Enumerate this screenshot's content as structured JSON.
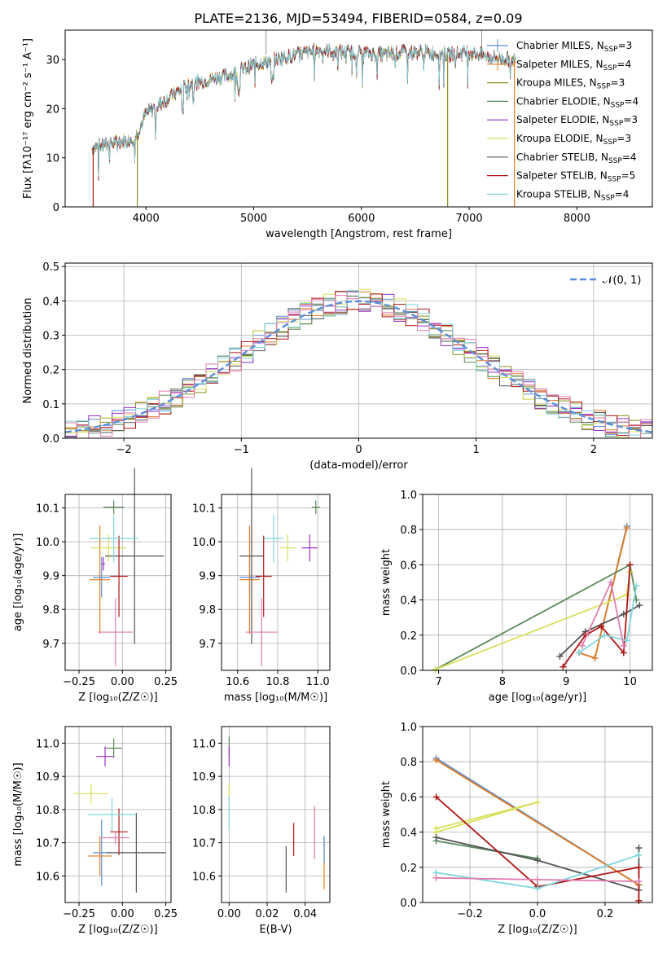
{
  "figure": {
    "title": "PLATE=2136, MJD=53494, FIBERID=0584, z=0.09"
  },
  "colors": {
    "Chabrier MILES": "#5b8fd9",
    "Salpeter MILES": "#e07b20",
    "Kroupa MILES": "#8c8c1e",
    "Chabrier ELODIE": "#5a8a5a",
    "Salpeter ELODIE": "#9b30c8",
    "Kroupa ELODIE": "#d8e05a",
    "Chabrier STELIB": "#555555",
    "Salpeter STELIB": "#b01515",
    "Kroupa STELIB": "#7fd6dc",
    "pink": "#e07bb0",
    "gauss": "#5b8fd9"
  },
  "chart_data": [
    {
      "type": "line",
      "id": "spectrum",
      "title": "PLATE=2136, MJD=53494, FIBERID=0584, z=0.09",
      "xlabel": "wavelength [Angstrom, rest frame]",
      "ylabel": "Flux [fλ10⁻¹⁷ erg cm⁻² s⁻¹ A⁻¹]",
      "xlim": [
        3250,
        8700
      ],
      "ylim": [
        0,
        36
      ],
      "xticks": [
        "4000",
        "5000",
        "6000",
        "7000",
        "8000"
      ],
      "yticks": [
        "0",
        "10",
        "20",
        "30"
      ],
      "legend_position": "right",
      "legend": [
        {
          "label": "Chabrier MILES, N",
          "sub": "SSP",
          "suffix": "=3"
        },
        {
          "label": "Salpeter MILES, N",
          "sub": "SSP",
          "suffix": "=4"
        },
        {
          "label": "Kroupa MILES, N",
          "sub": "SSP",
          "suffix": "=3"
        },
        {
          "label": "Chabrier ELODIE, N",
          "sub": "SSP",
          "suffix": "=4"
        },
        {
          "label": "Salpeter ELODIE, N",
          "sub": "SSP",
          "suffix": "=3"
        },
        {
          "label": "Kroupa ELODIE, N",
          "sub": "SSP",
          "suffix": "=3"
        },
        {
          "label": "Chabrier STELIB, N",
          "sub": "SSP",
          "suffix": "=4"
        },
        {
          "label": "Salpeter STELIB, N",
          "sub": "SSP",
          "suffix": "=5"
        },
        {
          "label": "Kroupa STELIB, N",
          "sub": "SSP",
          "suffix": "=4"
        }
      ],
      "continuum": [
        [
          3500,
          12
        ],
        [
          3700,
          13
        ],
        [
          3900,
          14
        ],
        [
          4000,
          19
        ],
        [
          4200,
          22
        ],
        [
          4400,
          25
        ],
        [
          4600,
          26
        ],
        [
          4800,
          27
        ],
        [
          5000,
          29
        ],
        [
          5200,
          30
        ],
        [
          5400,
          31
        ],
        [
          5600,
          32
        ],
        [
          5800,
          31.5
        ],
        [
          6000,
          31.5
        ],
        [
          6200,
          31
        ],
        [
          6400,
          31.5
        ],
        [
          6600,
          31.5
        ],
        [
          6800,
          31
        ],
        [
          7000,
          31.5
        ],
        [
          7200,
          30.5
        ],
        [
          7400,
          30
        ]
      ],
      "drops": [
        [
          3510,
          0
        ],
        [
          3920,
          0
        ],
        [
          6800,
          0
        ],
        [
          7420,
          0
        ]
      ]
    },
    {
      "type": "histogram",
      "id": "residuals",
      "xlabel": "(data-model)/error",
      "ylabel": "Normed distribution",
      "xlim": [
        -2.5,
        2.5
      ],
      "ylim": [
        0,
        0.51
      ],
      "xticks": [
        "−2",
        "−1",
        "0",
        "1",
        "2"
      ],
      "yticks": [
        "0.0",
        "0.1",
        "0.2",
        "0.3",
        "0.4",
        "0.5"
      ],
      "legend": [
        "𝒩(0, 1)"
      ],
      "legend_position": "top-right",
      "bins_start": -2.5,
      "bin_width": 0.1,
      "gaussian_mean": 0,
      "gaussian_sigma": 1
    },
    {
      "type": "scatter",
      "id": "age-vs-Z",
      "xlabel": "Z [log₁₀(Z/Z☉)]",
      "ylabel": "age  [log₁₀(age/yr)]",
      "xlim": [
        -0.33,
        0.28
      ],
      "ylim": [
        9.62,
        10.14
      ],
      "xticks": [
        "−0.25",
        "0.00",
        "0.25"
      ],
      "yticks": [
        "9.7",
        "9.8",
        "9.9",
        "10.0",
        "10.1"
      ],
      "points": [
        {
          "series": "Chabrier MILES",
          "x": -0.12,
          "y": 9.895,
          "xerr": 0.05,
          "yerr": 0.06
        },
        {
          "series": "Salpeter MILES",
          "x": -0.13,
          "y": 9.888,
          "xerr": 0.06,
          "yerr": 0.16
        },
        {
          "series": "Chabrier ELODIE",
          "x": -0.05,
          "y": 10.102,
          "xerr": 0.06,
          "yerr": 0.02
        },
        {
          "series": "Salpeter ELODIE",
          "x": -0.11,
          "y": 9.935,
          "xerr": 0.01,
          "yerr": 0.02
        },
        {
          "series": "Kroupa ELODIE",
          "x": -0.08,
          "y": 9.982,
          "xerr": 0.1,
          "yerr": 0.04
        },
        {
          "series": "Chabrier STELIB",
          "x": 0.07,
          "y": 9.958,
          "xerr": 0.17,
          "yerr": 0.26
        },
        {
          "series": "Salpeter STELIB",
          "x": -0.02,
          "y": 9.898,
          "xerr": 0.05,
          "yerr": 0.12
        },
        {
          "series": "Kroupa STELIB",
          "x": -0.05,
          "y": 10.01,
          "xerr": 0.14,
          "yerr": 0.07
        },
        {
          "series": "pink",
          "x": -0.04,
          "y": 9.733,
          "xerr": 0.1,
          "yerr": 0.1
        }
      ]
    },
    {
      "type": "scatter",
      "id": "age-vs-mass",
      "xlabel": "mass [log₁₀(M/M☉)]",
      "ylabel": "",
      "xlim": [
        10.52,
        11.06
      ],
      "ylim": [
        9.62,
        10.14
      ],
      "xticks": [
        "10.6",
        "10.8",
        "11.0"
      ],
      "yticks": [
        "9.7",
        "9.8",
        "9.9",
        "10.0",
        "10.1"
      ],
      "points": [
        {
          "series": "Chabrier MILES",
          "x": 10.66,
          "y": 9.895,
          "xerr": 0.05,
          "yerr": 0.06
        },
        {
          "series": "Salpeter MILES",
          "x": 10.66,
          "y": 9.888,
          "xerr": 0.05,
          "yerr": 0.16
        },
        {
          "series": "Chabrier ELODIE",
          "x": 10.99,
          "y": 10.102,
          "xerr": 0.02,
          "yerr": 0.02
        },
        {
          "series": "Salpeter ELODIE",
          "x": 10.96,
          "y": 9.982,
          "xerr": 0.04,
          "yerr": 0.04
        },
        {
          "series": "Kroupa ELODIE",
          "x": 10.85,
          "y": 9.982,
          "xerr": 0.04,
          "yerr": 0.04
        },
        {
          "series": "Chabrier STELIB",
          "x": 10.67,
          "y": 9.958,
          "xerr": 0.06,
          "yerr": 0.26
        },
        {
          "series": "Salpeter STELIB",
          "x": 10.73,
          "y": 9.898,
          "xerr": 0.04,
          "yerr": 0.12
        },
        {
          "series": "Kroupa STELIB",
          "x": 10.78,
          "y": 10.01,
          "xerr": 0.05,
          "yerr": 0.07
        },
        {
          "series": "pink",
          "x": 10.72,
          "y": 9.733,
          "xerr": 0.08,
          "yerr": 0.1
        }
      ]
    },
    {
      "type": "line",
      "id": "mass-weight-vs-age",
      "xlabel": "age  [log₁₀(age/yr)]",
      "ylabel": "mass weight",
      "xlim": [
        6.75,
        10.35
      ],
      "ylim": [
        0,
        1.0
      ],
      "xticks": [
        "7",
        "8",
        "9",
        "10"
      ],
      "yticks": [
        "0.0",
        "0.2",
        "0.4",
        "0.6",
        "0.8",
        "1.0"
      ],
      "series": [
        {
          "name": "Chabrier MILES",
          "x": [
            9.2,
            9.45,
            9.95
          ],
          "y": [
            0.1,
            0.07,
            0.82
          ]
        },
        {
          "name": "Salpeter MILES",
          "x": [
            9.2,
            9.45,
            9.95
          ],
          "y": [
            0.1,
            0.07,
            0.81
          ]
        },
        {
          "name": "Chabrier ELODIE",
          "x": [
            6.95,
            10.0,
            10.1
          ],
          "y": [
            0.005,
            0.6,
            0.4
          ]
        },
        {
          "name": "Kroupa ELODIE",
          "x": [
            6.95,
            9.95,
            10.0
          ],
          "y": [
            0.005,
            0.43,
            0.56
          ]
        },
        {
          "name": "Chabrier STELIB",
          "x": [
            8.9,
            9.3,
            9.9,
            10.15
          ],
          "y": [
            0.08,
            0.22,
            0.32,
            0.37
          ]
        },
        {
          "name": "Salpeter STELIB",
          "x": [
            8.95,
            9.3,
            9.55,
            9.9,
            10.0
          ],
          "y": [
            0.02,
            0.2,
            0.25,
            0.1,
            0.6
          ]
        },
        {
          "name": "Kroupa STELIB",
          "x": [
            9.2,
            9.6,
            9.95,
            10.1
          ],
          "y": [
            0.1,
            0.2,
            0.17,
            0.48
          ]
        },
        {
          "name": "pink",
          "x": [
            9.25,
            9.7,
            9.9
          ],
          "y": [
            0.14,
            0.5,
            0.14
          ]
        }
      ]
    },
    {
      "type": "scatter",
      "id": "mass-vs-Z",
      "xlabel": "Z [log₁₀(Z/Z☉)]",
      "ylabel": "mass [log₁₀(M/M☉)]",
      "xlim": [
        -0.33,
        0.28
      ],
      "ylim": [
        10.52,
        11.05
      ],
      "xticks": [
        "−0.25",
        "0.00",
        "0.25"
      ],
      "yticks": [
        "10.6",
        "10.7",
        "10.8",
        "10.9",
        "11.0"
      ],
      "points": [
        {
          "series": "Chabrier MILES",
          "x": -0.12,
          "y": 10.67,
          "xerr": 0.05,
          "yerr": 0.1
        },
        {
          "series": "Salpeter MILES",
          "x": -0.13,
          "y": 10.66,
          "xerr": 0.07,
          "yerr": 0.06
        },
        {
          "series": "Chabrier ELODIE",
          "x": -0.05,
          "y": 10.985,
          "xerr": 0.05,
          "yerr": 0.03
        },
        {
          "series": "Salpeter ELODIE",
          "x": -0.1,
          "y": 10.96,
          "xerr": 0.05,
          "yerr": 0.03
        },
        {
          "series": "Kroupa ELODIE",
          "x": -0.18,
          "y": 10.848,
          "xerr": 0.1,
          "yerr": 0.03
        },
        {
          "series": "Chabrier STELIB",
          "x": 0.08,
          "y": 10.67,
          "xerr": 0.17,
          "yerr": 0.12
        },
        {
          "series": "Salpeter STELIB",
          "x": -0.02,
          "y": 10.733,
          "xerr": 0.05,
          "yerr": 0.07
        },
        {
          "series": "Kroupa STELIB",
          "x": -0.06,
          "y": 10.785,
          "xerr": 0.14,
          "yerr": 0.05
        },
        {
          "series": "pink",
          "x": -0.04,
          "y": 10.715,
          "xerr": 0.08,
          "yerr": 0.02
        }
      ]
    },
    {
      "type": "scatter",
      "id": "mass-vs-ebv",
      "xlabel": "E(B-V)",
      "ylabel": "",
      "xlim": [
        -0.004,
        0.053
      ],
      "ylim": [
        10.52,
        11.05
      ],
      "xticks": [
        "0.00",
        "0.02",
        "0.04"
      ],
      "yticks": [
        "10.6",
        "10.7",
        "10.8",
        "10.9",
        "11.0"
      ],
      "points": [
        {
          "series": "Chabrier ELODIE",
          "x": 0.0,
          "y": 10.99,
          "xerr": 0,
          "yerr": 0.03
        },
        {
          "series": "Salpeter ELODIE",
          "x": 0.0,
          "y": 10.96,
          "xerr": 0,
          "yerr": 0.03
        },
        {
          "series": "Kroupa ELODIE",
          "x": 0.0,
          "y": 10.85,
          "xerr": 0,
          "yerr": 0.03
        },
        {
          "series": "Kroupa STELIB",
          "x": 0.0,
          "y": 10.79,
          "xerr": 0,
          "yerr": 0.05
        },
        {
          "series": "Chabrier STELIB",
          "x": 0.03,
          "y": 10.62,
          "xerr": 0,
          "yerr": 0.07
        },
        {
          "series": "Salpeter STELIB",
          "x": 0.034,
          "y": 10.71,
          "xerr": 0,
          "yerr": 0.05
        },
        {
          "series": "pink",
          "x": 0.045,
          "y": 10.73,
          "xerr": 0,
          "yerr": 0.08
        },
        {
          "series": "Salpeter MILES",
          "x": 0.05,
          "y": 10.64,
          "xerr": 0,
          "yerr": 0.08
        },
        {
          "series": "Chabrier MILES",
          "x": 0.05,
          "y": 10.68,
          "xerr": 0,
          "yerr": 0.04
        }
      ]
    },
    {
      "type": "line",
      "id": "mass-weight-vs-Z",
      "xlabel": "Z [log₁₀(Z/Z☉)]",
      "ylabel": "mass weight",
      "xlim": [
        -0.34,
        0.34
      ],
      "ylim": [
        0,
        1.0
      ],
      "xticks": [
        "−0.2",
        "0.0",
        "0.2"
      ],
      "yticks": [
        "0.0",
        "0.2",
        "0.4",
        "0.6",
        "0.8",
        "1.0"
      ],
      "series": [
        {
          "name": "Chabrier MILES",
          "x": [
            -0.3,
            0.3
          ],
          "y": [
            0.82,
            0.1
          ]
        },
        {
          "name": "Salpeter MILES",
          "x": [
            -0.3,
            0.3
          ],
          "y": [
            0.81,
            0.1
          ]
        },
        {
          "name": "Kroupa ELODIE",
          "x": [
            -0.3,
            0.0,
            -0.3
          ],
          "y": [
            0.42,
            0.57,
            0.4
          ]
        },
        {
          "name": "Chabrier ELODIE",
          "x": [
            -0.3,
            0.0
          ],
          "y": [
            0.35,
            0.25
          ]
        },
        {
          "name": "Chabrier STELIB",
          "x": [
            -0.3,
            0.0,
            0.3,
            0.3
          ],
          "y": [
            0.37,
            0.24,
            0.07,
            0.31
          ]
        },
        {
          "name": "Salpeter STELIB",
          "x": [
            -0.3,
            0.0,
            0.3,
            0.3
          ],
          "y": [
            0.6,
            0.09,
            0.2,
            0.01
          ]
        },
        {
          "name": "Kroupa STELIB",
          "x": [
            -0.3,
            0.0,
            0.3
          ],
          "y": [
            0.17,
            0.08,
            0.27
          ]
        },
        {
          "name": "pink",
          "x": [
            -0.3,
            0.0,
            0.3
          ],
          "y": [
            0.14,
            0.13,
            0.12
          ]
        }
      ]
    }
  ]
}
